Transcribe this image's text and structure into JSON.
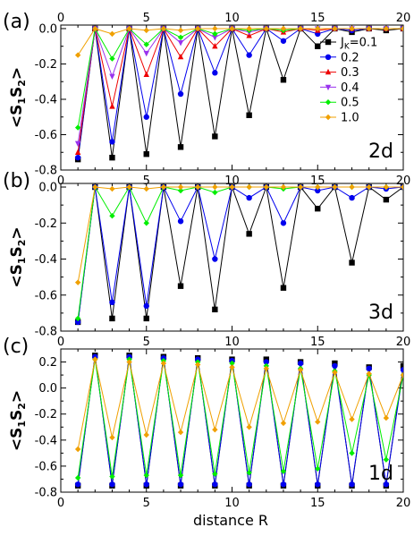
{
  "figure": {
    "xlabel": "distance R",
    "ylabel_base": "<S",
    "ylabel_sub1": "1",
    "ylabel_mid": "S",
    "ylabel_sub2": "2",
    "ylabel_end": ">",
    "legend_sym": "J",
    "legend_sym_sub": "K",
    "legend_eq": "=",
    "colors": {
      "0.1": "#000000",
      "0.2": "#0000ee",
      "0.3": "#ee0000",
      "0.4": "#9933ee",
      "0.5": "#00ee00",
      "1.0": "#f0a000"
    }
  },
  "chart_data": [
    {
      "type": "line",
      "panel_letter": "(a)",
      "dimension_label": "2d",
      "xlim": [
        0,
        20
      ],
      "ylim": [
        -0.8,
        0.02
      ],
      "xticks": [
        0,
        5,
        10,
        15,
        20
      ],
      "yticks": [
        0.0,
        -0.2,
        -0.4,
        -0.6,
        -0.8
      ],
      "ytick_labels": [
        "0.0",
        "-0.2",
        "-0.4",
        "-0.6",
        "-0.8"
      ],
      "x_top_axis_labels": true,
      "legend": {
        "placement": "right",
        "entries": [
          "0.1",
          "0.2",
          "0.3",
          "0.4",
          "0.5",
          "1.0"
        ]
      },
      "x": [
        1,
        2,
        3,
        4,
        5,
        6,
        7,
        8,
        9,
        10,
        11,
        12,
        13,
        14,
        15,
        16,
        17,
        18,
        19,
        20
      ],
      "series": [
        {
          "name": "0.1",
          "marker": "square",
          "values": [
            -0.74,
            0.0,
            -0.73,
            0.0,
            -0.71,
            0.0,
            -0.67,
            0.0,
            -0.61,
            0.0,
            -0.49,
            0.0,
            -0.29,
            0.0,
            -0.1,
            0.0,
            -0.02,
            0.0,
            -0.01,
            0.0
          ]
        },
        {
          "name": "0.2",
          "marker": "circle",
          "values": [
            -0.73,
            0.0,
            -0.64,
            0.0,
            -0.5,
            0.0,
            -0.37,
            0.0,
            -0.25,
            0.0,
            -0.15,
            0.0,
            -0.07,
            0.0,
            -0.03,
            0.0,
            -0.01,
            0.0,
            0.0,
            0.0
          ]
        },
        {
          "name": "0.3",
          "marker": "triangle-up",
          "values": [
            -0.7,
            0.0,
            -0.44,
            0.0,
            -0.26,
            0.0,
            -0.16,
            0.0,
            -0.1,
            0.0,
            -0.04,
            0.0,
            -0.02,
            0.0,
            -0.01,
            0.0,
            0.0,
            0.0,
            0.0,
            0.0
          ]
        },
        {
          "name": "0.4",
          "marker": "triangle-down",
          "values": [
            -0.65,
            0.0,
            -0.27,
            0.0,
            -0.14,
            0.0,
            -0.08,
            0.0,
            -0.05,
            0.0,
            -0.02,
            0.0,
            -0.01,
            0.0,
            0.0,
            0.0,
            0.0,
            0.0,
            0.0,
            0.0
          ]
        },
        {
          "name": "0.5",
          "marker": "diamond",
          "values": [
            -0.56,
            0.0,
            -0.17,
            0.0,
            -0.09,
            0.0,
            -0.05,
            0.0,
            -0.03,
            0.0,
            -0.01,
            0.0,
            -0.01,
            0.0,
            0.0,
            0.0,
            0.0,
            0.0,
            0.0,
            0.0
          ]
        },
        {
          "name": "1.0",
          "marker": "diamond",
          "values": [
            -0.15,
            0.0,
            -0.03,
            0.0,
            -0.01,
            0.0,
            -0.01,
            0.0,
            0.0,
            0.0,
            0.0,
            0.0,
            0.0,
            0.0,
            0.0,
            0.0,
            0.0,
            0.0,
            0.0,
            0.0
          ]
        }
      ]
    },
    {
      "type": "line",
      "panel_letter": "(b)",
      "dimension_label": "3d",
      "xlim": [
        0,
        20
      ],
      "ylim": [
        -0.8,
        0.02
      ],
      "xticks": [
        0,
        5,
        10,
        15,
        20
      ],
      "yticks": [
        0.0,
        -0.2,
        -0.4,
        -0.6,
        -0.8
      ],
      "ytick_labels": [
        "0.0",
        "-0.2",
        "-0.4",
        "-0.6",
        "-0.8"
      ],
      "x_top_axis_labels": false,
      "x": [
        1,
        2,
        3,
        4,
        5,
        6,
        7,
        8,
        9,
        10,
        11,
        12,
        13,
        14,
        15,
        16,
        17,
        18,
        19,
        20
      ],
      "series": [
        {
          "name": "0.1",
          "marker": "square",
          "values": [
            -0.75,
            0.0,
            -0.73,
            0.0,
            -0.73,
            0.0,
            -0.55,
            0.0,
            -0.68,
            0.0,
            -0.26,
            0.0,
            -0.56,
            0.0,
            -0.12,
            0.0,
            -0.42,
            0.0,
            -0.07,
            0.0
          ]
        },
        {
          "name": "0.2",
          "marker": "circle",
          "values": [
            -0.75,
            0.0,
            -0.64,
            0.0,
            -0.66,
            0.0,
            -0.19,
            0.0,
            -0.4,
            0.0,
            -0.06,
            0.0,
            -0.2,
            0.0,
            -0.02,
            0.0,
            -0.06,
            0.0,
            -0.01,
            0.0
          ]
        },
        {
          "name": "0.5",
          "marker": "diamond",
          "values": [
            -0.73,
            0.0,
            -0.16,
            0.0,
            -0.2,
            0.0,
            -0.02,
            0.0,
            -0.03,
            0.0,
            0.0,
            0.0,
            -0.01,
            0.0,
            0.0,
            0.0,
            0.0,
            0.0,
            0.0,
            0.0
          ]
        },
        {
          "name": "1.0",
          "marker": "diamond",
          "values": [
            -0.53,
            0.0,
            -0.01,
            0.0,
            -0.01,
            0.0,
            0.0,
            0.0,
            0.0,
            0.0,
            0.0,
            0.0,
            0.0,
            0.0,
            0.0,
            0.0,
            0.0,
            0.0,
            0.0,
            0.0
          ]
        }
      ]
    },
    {
      "type": "line",
      "panel_letter": "(c)",
      "dimension_label": "1d",
      "xlim": [
        0,
        20
      ],
      "ylim": [
        -0.8,
        0.3
      ],
      "xticks": [
        0,
        5,
        10,
        15,
        20
      ],
      "yticks": [
        0.2,
        0.0,
        -0.2,
        -0.4,
        -0.6,
        -0.8
      ],
      "ytick_labels": [
        "0.2",
        "0.0",
        "-0.2",
        "-0.4",
        "-0.6",
        "-0.8"
      ],
      "x_top_axis_labels": false,
      "x": [
        1,
        2,
        3,
        4,
        5,
        6,
        7,
        8,
        9,
        10,
        11,
        12,
        13,
        14,
        15,
        16,
        17,
        18,
        19,
        20
      ],
      "series": [
        {
          "name": "0.1",
          "marker": "square",
          "values": [
            -0.75,
            0.25,
            -0.75,
            0.25,
            -0.75,
            0.24,
            -0.75,
            0.23,
            -0.75,
            0.22,
            -0.75,
            0.22,
            -0.75,
            0.2,
            -0.75,
            0.19,
            -0.75,
            0.16,
            -0.75,
            0.17
          ]
        },
        {
          "name": "0.2",
          "marker": "circle",
          "values": [
            -0.74,
            0.24,
            -0.74,
            0.24,
            -0.74,
            0.23,
            -0.74,
            0.22,
            -0.74,
            0.21,
            -0.74,
            0.2,
            -0.74,
            0.19,
            -0.74,
            0.17,
            -0.74,
            0.15,
            -0.74,
            0.14
          ]
        },
        {
          "name": "0.5",
          "marker": "diamond",
          "values": [
            -0.69,
            0.22,
            -0.68,
            0.22,
            -0.67,
            0.21,
            -0.67,
            0.2,
            -0.66,
            0.19,
            -0.65,
            0.17,
            -0.64,
            0.15,
            -0.62,
            0.13,
            -0.5,
            0.1,
            -0.55,
            0.1
          ]
        },
        {
          "name": "1.0",
          "marker": "diamond",
          "values": [
            -0.47,
            0.22,
            -0.38,
            0.2,
            -0.36,
            0.19,
            -0.34,
            0.18,
            -0.32,
            0.16,
            -0.3,
            0.15,
            -0.27,
            0.14,
            -0.26,
            0.12,
            -0.24,
            0.11,
            -0.23,
            0.1
          ]
        }
      ]
    }
  ]
}
